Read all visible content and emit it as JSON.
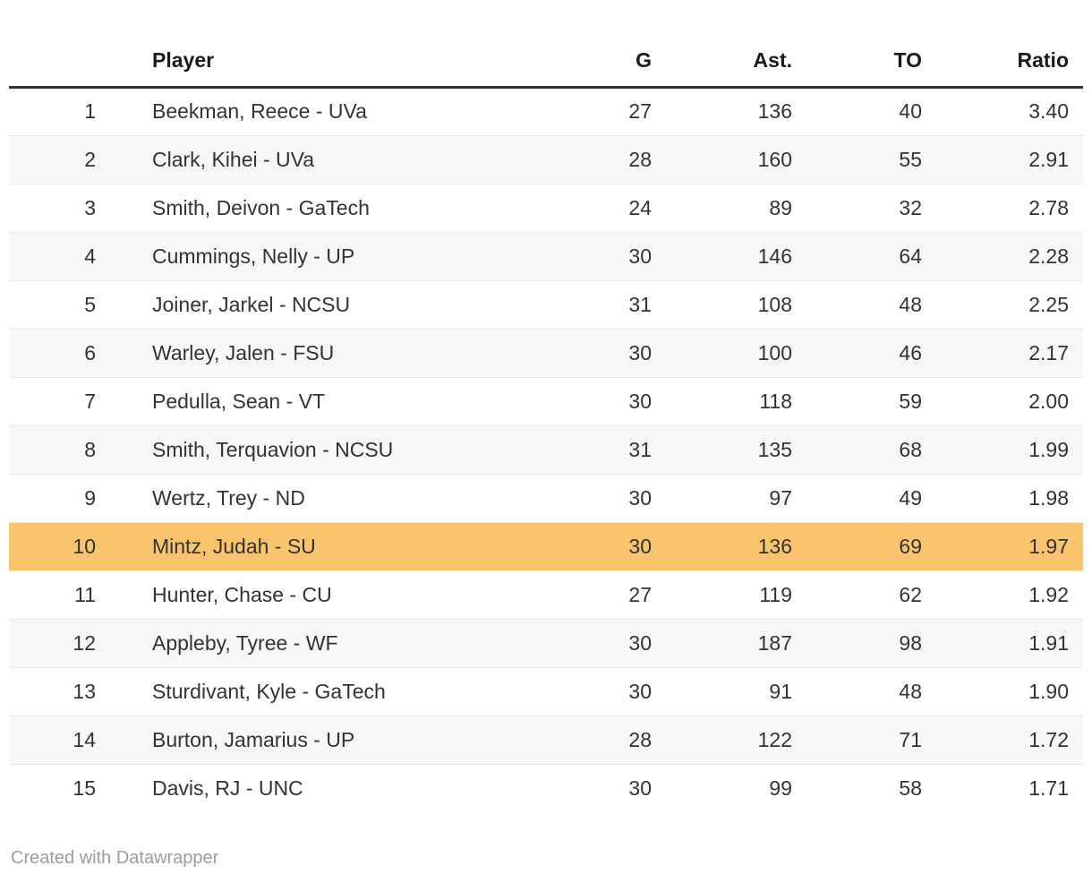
{
  "chart_data": {
    "type": "table",
    "title": "",
    "columns": [
      {
        "key": "rank",
        "label": ""
      },
      {
        "key": "player",
        "label": "Player"
      },
      {
        "key": "g",
        "label": "G"
      },
      {
        "key": "ast",
        "label": "Ast."
      },
      {
        "key": "to",
        "label": "TO"
      },
      {
        "key": "ratio",
        "label": "Ratio"
      }
    ],
    "rows": [
      {
        "rank": "1",
        "player": "Beekman, Reece - UVa",
        "g": "27",
        "ast": "136",
        "to": "40",
        "ratio": "3.40"
      },
      {
        "rank": "2",
        "player": "Clark, Kihei - UVa",
        "g": "28",
        "ast": "160",
        "to": "55",
        "ratio": "2.91"
      },
      {
        "rank": "3",
        "player": "Smith, Deivon - GaTech",
        "g": "24",
        "ast": "89",
        "to": "32",
        "ratio": "2.78"
      },
      {
        "rank": "4",
        "player": "Cummings, Nelly - UP",
        "g": "30",
        "ast": "146",
        "to": "64",
        "ratio": "2.28"
      },
      {
        "rank": "5",
        "player": "Joiner, Jarkel - NCSU",
        "g": "31",
        "ast": "108",
        "to": "48",
        "ratio": "2.25"
      },
      {
        "rank": "6",
        "player": "Warley, Jalen - FSU",
        "g": "30",
        "ast": "100",
        "to": "46",
        "ratio": "2.17"
      },
      {
        "rank": "7",
        "player": "Pedulla, Sean - VT",
        "g": "30",
        "ast": "118",
        "to": "59",
        "ratio": "2.00"
      },
      {
        "rank": "8",
        "player": "Smith, Terquavion - NCSU",
        "g": "31",
        "ast": "135",
        "to": "68",
        "ratio": "1.99"
      },
      {
        "rank": "9",
        "player": "Wertz, Trey - ND",
        "g": "30",
        "ast": "97",
        "to": "49",
        "ratio": "1.98"
      },
      {
        "rank": "10",
        "player": "Mintz, Judah - SU",
        "g": "30",
        "ast": "136",
        "to": "69",
        "ratio": "1.97"
      },
      {
        "rank": "11",
        "player": "Hunter, Chase - CU",
        "g": "27",
        "ast": "119",
        "to": "62",
        "ratio": "1.92"
      },
      {
        "rank": "12",
        "player": "Appleby, Tyree - WF",
        "g": "30",
        "ast": "187",
        "to": "98",
        "ratio": "1.91"
      },
      {
        "rank": "13",
        "player": "Sturdivant, Kyle - GaTech",
        "g": "30",
        "ast": "91",
        "to": "48",
        "ratio": "1.90"
      },
      {
        "rank": "14",
        "player": "Burton, Jamarius - UP",
        "g": "28",
        "ast": "122",
        "to": "71",
        "ratio": "1.72"
      },
      {
        "rank": "15",
        "player": "Davis, RJ - UNC",
        "g": "30",
        "ast": "99",
        "to": "58",
        "ratio": "1.71"
      }
    ],
    "highlight_row_index": 9,
    "highlight_color": "#F9C46B",
    "stripe_color": "#F7F7F7",
    "header_rule_color": "#333333"
  },
  "footer": {
    "credit": "Created with Datawrapper"
  }
}
